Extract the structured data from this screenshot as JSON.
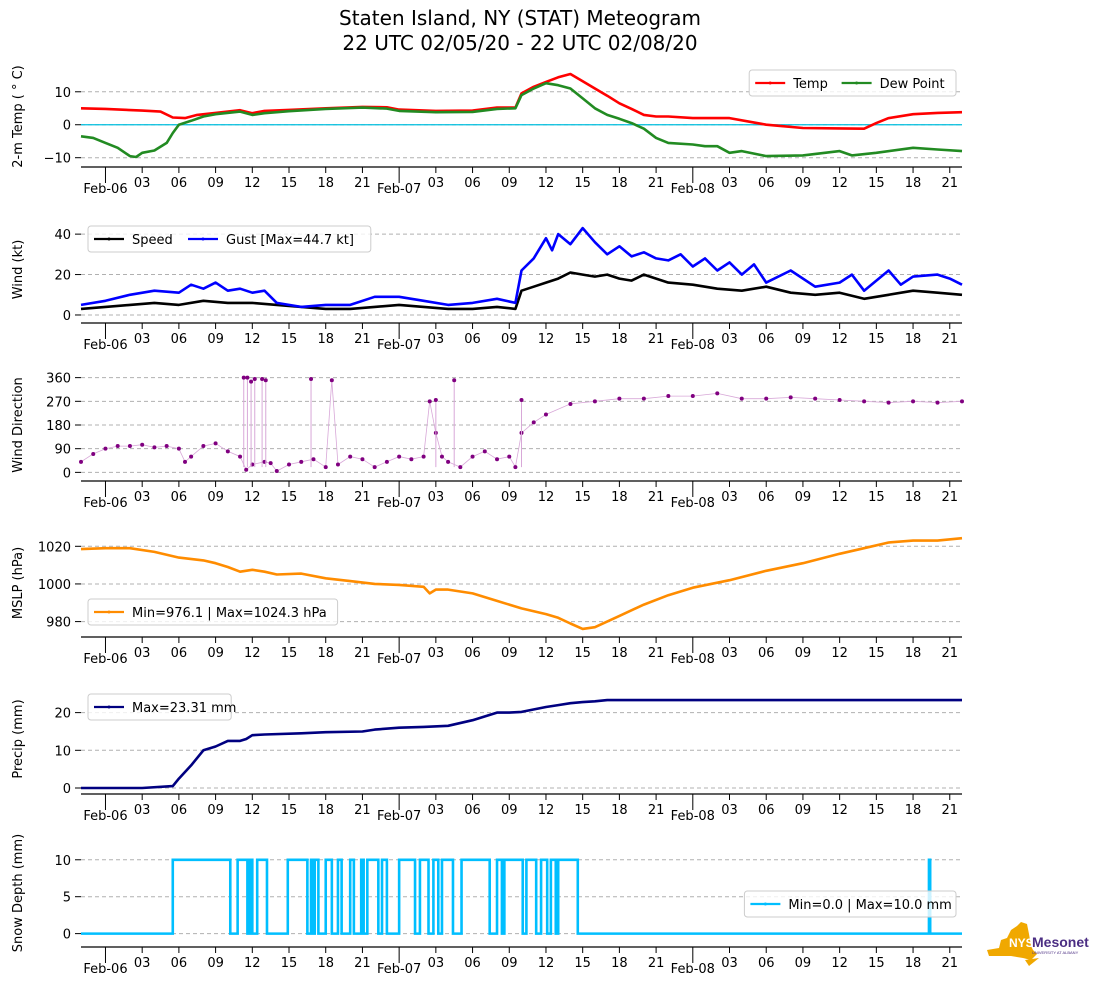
{
  "title": {
    "line1": "Staten Island, NY (STAT) Meteogram",
    "line2": "22 UTC 02/05/20 - 22 UTC 02/08/20"
  },
  "time_axis": {
    "start_hour": 22,
    "end_hour": 94,
    "day_labels": [
      {
        "hour": 24,
        "label": "Feb-06"
      },
      {
        "hour": 48,
        "label": "Feb-07"
      },
      {
        "hour": 72,
        "label": "Feb-08"
      }
    ],
    "hour_tick_labels": [
      "03",
      "06",
      "09",
      "12",
      "15",
      "18",
      "21"
    ]
  },
  "colors": {
    "temp": "#ff0000",
    "dewpoint": "#228b22",
    "zero_line": "#00bfdf",
    "speed": "#000000",
    "gust": "#0000ff",
    "direction": "#800080",
    "direction_line": "#d8a8d8",
    "mslp": "#ff8c00",
    "precip": "#000080",
    "snow": "#00bfff",
    "grid": "#b0b0b0"
  },
  "logo": {
    "line1": "NYS",
    "line2": "Mesonet",
    "line3": "UNIVERSITY AT ALBANY"
  },
  "chart_data": [
    {
      "type": "line",
      "id": "temp",
      "ylabel": "2-m Temp ($^\\circ$C)",
      "ylabel_display": "2-m Temp ( ° C)",
      "ylim": [
        -11,
        16
      ],
      "yticks": [
        -10,
        0,
        10
      ],
      "ytick_labels": [
        "−10",
        "0",
        "10"
      ],
      "grid": true,
      "hline": 0,
      "legend": {
        "placement": "top-right",
        "entries": [
          "Temp",
          "Dew Point"
        ]
      },
      "series": [
        {
          "name": "Temp",
          "color_key": "temp",
          "x": [
            22,
            24,
            27,
            28.5,
            29.5,
            30.5,
            31.5,
            33,
            35,
            36,
            37,
            39,
            42,
            45,
            47,
            48,
            51,
            54,
            56,
            57.5,
            58,
            59,
            60,
            61,
            62,
            63,
            64,
            65,
            66,
            67,
            68,
            69,
            70,
            72,
            75,
            78,
            81,
            84,
            86,
            87,
            88,
            90,
            92,
            94
          ],
          "y": [
            5,
            4.8,
            4.3,
            4,
            2.2,
            2.0,
            3.0,
            3.6,
            4.4,
            3.5,
            4.2,
            4.5,
            5.0,
            5.4,
            5.3,
            4.6,
            4.2,
            4.3,
            5.2,
            5.2,
            9.5,
            11.5,
            13,
            14.4,
            15.4,
            13.2,
            11,
            8.8,
            6.5,
            4.8,
            3.0,
            2.5,
            2.5,
            2.0,
            2.0,
            0.0,
            -1.0,
            -1.1,
            -1.2,
            0.5,
            2.0,
            3.2,
            3.6,
            3.8
          ]
        },
        {
          "name": "Dew Point",
          "color_key": "dewpoint",
          "x": [
            22,
            23,
            24,
            25,
            26,
            26.5,
            27,
            28,
            29,
            29.5,
            30,
            31,
            32,
            33,
            35,
            36,
            37,
            39,
            42,
            45,
            47,
            48,
            51,
            54,
            56,
            57.5,
            58,
            59,
            60,
            61,
            62,
            63,
            64,
            65,
            66,
            67,
            68,
            69,
            70,
            72,
            73,
            74,
            75,
            76,
            78,
            81,
            84,
            85,
            87,
            90,
            92,
            94
          ],
          "y": [
            -3.5,
            -4,
            -5.5,
            -7.0,
            -9.5,
            -9.8,
            -8.5,
            -7.8,
            -5.5,
            -2.5,
            0.0,
            1.2,
            2.5,
            3.2,
            4.0,
            3.0,
            3.5,
            4.1,
            4.8,
            5.2,
            4.9,
            4.2,
            3.8,
            3.9,
            4.8,
            5.0,
            9.0,
            11.0,
            12.6,
            12.0,
            11.0,
            8.0,
            5.0,
            3.0,
            1.8,
            0.5,
            -1.2,
            -4,
            -5.5,
            -6.0,
            -6.5,
            -6.5,
            -8.5,
            -8.0,
            -9.5,
            -9.3,
            -8.0,
            -9.3,
            -8.5,
            -7.0,
            -7.5,
            -8.0
          ]
        }
      ]
    },
    {
      "type": "line",
      "id": "wind",
      "ylabel": "Wind (kt)",
      "ylim": [
        -1,
        46
      ],
      "yticks": [
        0,
        20,
        40
      ],
      "ytick_labels": [
        "0",
        "20",
        "40"
      ],
      "grid": true,
      "legend": {
        "placement": "top-left",
        "entries": [
          "Speed",
          "Gust [Max=44.7 kt]"
        ]
      },
      "series": [
        {
          "name": "Speed",
          "color_key": "speed",
          "x": [
            22,
            24,
            26,
            28,
            30,
            32,
            34,
            36,
            38,
            40,
            42,
            44,
            46,
            48,
            50,
            52,
            54,
            56,
            57.5,
            58,
            59,
            60,
            61,
            62,
            63,
            64,
            65,
            66,
            67,
            68,
            69,
            70,
            72,
            74,
            76,
            78,
            80,
            82,
            84,
            86,
            88,
            90,
            92,
            94
          ],
          "y": [
            3,
            4,
            5,
            6,
            5,
            7,
            6,
            6,
            5,
            4,
            3,
            3,
            4,
            5,
            4,
            3,
            3,
            4,
            3,
            12,
            14,
            16,
            18,
            21,
            20,
            19,
            20,
            18,
            17,
            20,
            18,
            16,
            15,
            13,
            12,
            14,
            11,
            10,
            11,
            8,
            10,
            12,
            11,
            10
          ]
        },
        {
          "name": "Gust",
          "color_key": "gust",
          "x": [
            22,
            24,
            26,
            28,
            30,
            31,
            32,
            33,
            34,
            35,
            36,
            37,
            38,
            39,
            40,
            42,
            44,
            46,
            48,
            50,
            52,
            54,
            56,
            57.5,
            58,
            59,
            60,
            60.5,
            61,
            62,
            63,
            64,
            65,
            66,
            67,
            68,
            69,
            70,
            71,
            72,
            73,
            74,
            75,
            76,
            77,
            78,
            80,
            82,
            84,
            85,
            86,
            88,
            89,
            90,
            92,
            93,
            94
          ],
          "y": [
            5,
            7,
            10,
            12,
            11,
            15,
            13,
            16,
            12,
            13,
            11,
            12,
            6,
            5,
            4,
            5,
            5,
            9,
            9,
            7,
            5,
            6,
            8,
            6,
            22,
            28,
            38,
            32,
            40,
            35,
            43,
            36,
            30,
            34,
            29,
            31,
            28,
            27,
            30,
            24,
            28,
            22,
            26,
            20,
            25,
            16,
            22,
            14,
            16,
            20,
            12,
            22,
            15,
            19,
            20,
            18,
            15
          ]
        }
      ]
    },
    {
      "type": "scatter",
      "id": "direction",
      "ylabel": "Wind Direction",
      "ylim": [
        -10,
        370
      ],
      "yticks": [
        0,
        90,
        180,
        270,
        360
      ],
      "ytick_labels": [
        "0",
        "90",
        "180",
        "270",
        "360"
      ],
      "grid": true,
      "series": [
        {
          "name": "Direction",
          "color_key": "direction",
          "x": [
            22,
            23,
            24,
            25,
            26,
            27,
            28,
            29,
            30,
            30.5,
            31,
            32,
            33,
            34,
            35,
            35.5,
            36,
            37,
            37.5,
            38,
            39,
            40,
            41,
            42,
            42.5,
            43,
            44,
            45,
            46,
            47,
            48,
            49,
            50,
            50.5,
            51,
            51.5,
            52,
            53,
            54,
            55,
            56,
            57,
            57.5,
            58,
            59,
            60,
            62,
            64,
            66,
            68,
            70,
            72,
            74,
            76,
            78,
            80,
            82,
            84,
            86,
            88,
            90,
            92,
            94
          ],
          "y": [
            40,
            70,
            90,
            100,
            100,
            105,
            95,
            100,
            90,
            40,
            60,
            100,
            110,
            80,
            60,
            10,
            30,
            40,
            35,
            5,
            30,
            40,
            50,
            20,
            350,
            30,
            60,
            50,
            20,
            40,
            60,
            50,
            60,
            270,
            150,
            60,
            40,
            20,
            60,
            80,
            50,
            60,
            20,
            150,
            190,
            220,
            260,
            270,
            280,
            280,
            290,
            290,
            300,
            280,
            280,
            285,
            280,
            275,
            270,
            265,
            270,
            265,
            270
          ]
        }
      ],
      "spikes": [
        {
          "x": 35.3,
          "y": 360
        },
        {
          "x": 35.6,
          "y": 360
        },
        {
          "x": 35.9,
          "y": 345
        },
        {
          "x": 36.2,
          "y": 355
        },
        {
          "x": 36.8,
          "y": 355
        },
        {
          "x": 37.1,
          "y": 350
        },
        {
          "x": 40.8,
          "y": 355
        },
        {
          "x": 51.0,
          "y": 275
        },
        {
          "x": 52.5,
          "y": 350
        },
        {
          "x": 58.0,
          "y": 275
        }
      ]
    },
    {
      "type": "line",
      "id": "mslp",
      "ylabel": "MSLP (hPa)",
      "ylim": [
        975,
        1026
      ],
      "yticks": [
        980,
        1000,
        1020
      ],
      "ytick_labels": [
        "980",
        "1000",
        "1020"
      ],
      "grid": true,
      "legend": {
        "placement": "bottom-left",
        "entries": [
          "Min=976.1 | Max=1024.3 hPa"
        ]
      },
      "series": [
        {
          "name": "MSLP",
          "color_key": "mslp",
          "x": [
            22,
            24,
            26,
            28,
            30,
            32,
            33,
            34,
            35,
            36,
            37,
            38,
            40,
            42,
            44,
            46,
            48,
            50,
            50.5,
            51,
            52,
            54,
            56,
            58,
            60,
            61,
            62,
            63,
            64,
            66,
            68,
            70,
            72,
            75,
            78,
            81,
            84,
            86,
            88,
            90,
            92,
            94
          ],
          "y": [
            1018.5,
            1019,
            1019,
            1017,
            1014,
            1012.5,
            1011,
            1009,
            1006.5,
            1007.5,
            1006.5,
            1005,
            1005.5,
            1003,
            1001.5,
            1000,
            999.5,
            998.5,
            995,
            997,
            997,
            995,
            991,
            987,
            984,
            982,
            979,
            976.1,
            977,
            983,
            989,
            994,
            998,
            1002,
            1007,
            1011,
            1016,
            1019,
            1022,
            1023,
            1023,
            1024.3
          ]
        }
      ]
    },
    {
      "type": "line",
      "id": "precip",
      "ylabel": "Precip (mm)",
      "ylim": [
        0,
        26
      ],
      "yticks": [
        0,
        10,
        20
      ],
      "ytick_labels": [
        "0",
        "10",
        "20"
      ],
      "grid": true,
      "legend": {
        "placement": "top-left",
        "entries": [
          "Max=23.31 mm"
        ]
      },
      "series": [
        {
          "name": "Precip",
          "color_key": "precip",
          "x": [
            22,
            27,
            29.5,
            30,
            31,
            32,
            33,
            34,
            35,
            35.5,
            36,
            37,
            40,
            42,
            45,
            46,
            48,
            50,
            52,
            54,
            56,
            57,
            58,
            60,
            61,
            62,
            63,
            64,
            65,
            66,
            94
          ],
          "y": [
            0,
            0,
            0.5,
            2.5,
            6,
            10,
            11,
            12.5,
            12.5,
            13,
            14,
            14.2,
            14.5,
            14.8,
            15,
            15.5,
            16,
            16.2,
            16.5,
            18,
            20,
            20,
            20.2,
            21.5,
            22,
            22.5,
            22.8,
            23.0,
            23.31,
            23.31,
            23.31
          ]
        }
      ]
    },
    {
      "type": "line",
      "id": "snow",
      "ylabel": "Snow Depth (mm)",
      "ylim": [
        -1,
        12
      ],
      "yticks": [
        0,
        5,
        10
      ],
      "ytick_labels": [
        "0",
        "5",
        "10"
      ],
      "grid": true,
      "legend": {
        "placement": "center-right",
        "entries": [
          "Min=0.0 | Max=10.0 mm"
        ]
      },
      "intervals_at_max": [
        [
          29.5,
          34.2
        ],
        [
          34.8,
          35.6
        ],
        [
          35.8,
          36.0
        ],
        [
          36.4,
          37.2
        ],
        [
          38.9,
          40.5
        ],
        [
          40.8,
          40.9
        ],
        [
          41.1,
          41.4
        ],
        [
          42.0,
          42.5
        ],
        [
          43.0,
          43.3
        ],
        [
          44.0,
          44.3
        ],
        [
          44.9,
          45.1
        ],
        [
          45.4,
          46.3
        ],
        [
          46.6,
          47.0
        ],
        [
          48.0,
          49.3
        ],
        [
          49.7,
          50.4
        ],
        [
          50.8,
          51.2
        ],
        [
          51.5,
          52.4
        ],
        [
          53.1,
          55.4
        ],
        [
          56.0,
          56.4
        ],
        [
          56.6,
          58.1
        ],
        [
          58.4,
          59.2
        ],
        [
          59.6,
          60.1
        ],
        [
          60.4,
          60.8
        ],
        [
          61.0,
          62.6
        ],
        [
          91.3,
          91.4
        ]
      ],
      "value_at_max": 10,
      "value_else": 0
    }
  ]
}
